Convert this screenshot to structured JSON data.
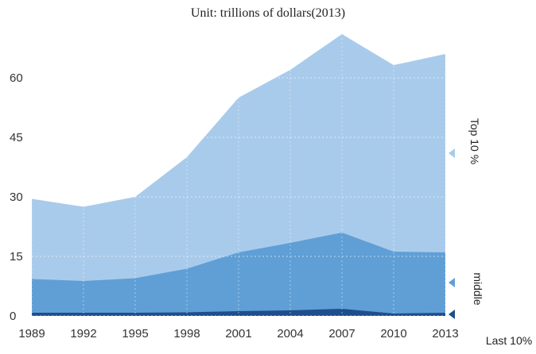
{
  "chart_data": {
    "type": "area",
    "title": "Unit: trillions of dollars(2013)",
    "x": [
      "1989",
      "1992",
      "1995",
      "1998",
      "2001",
      "2004",
      "2007",
      "2010",
      "2013"
    ],
    "ylim": [
      0,
      70
    ],
    "yticks": [
      0,
      15,
      30,
      45,
      60
    ],
    "grid": true,
    "stacked": true,
    "series": [
      {
        "name": "Last 10%",
        "values": [
          0.8,
          0.8,
          0.8,
          0.9,
          1.2,
          1.4,
          1.8,
          0.6,
          0.8
        ],
        "color": "#1f4e8c"
      },
      {
        "name": "middle",
        "values": [
          8.5,
          8.0,
          8.7,
          11.0,
          14.8,
          17.0,
          19.2,
          15.6,
          15.2
        ],
        "color": "#5f9fd6"
      },
      {
        "name": "Top 10 %",
        "values": [
          20.2,
          18.7,
          20.5,
          28.1,
          39.0,
          43.6,
          50.0,
          47.0,
          50.0
        ],
        "color": "#a9cbeb"
      }
    ],
    "side_labels": [
      "Top 10 %",
      "middle",
      "Last 10%"
    ]
  }
}
